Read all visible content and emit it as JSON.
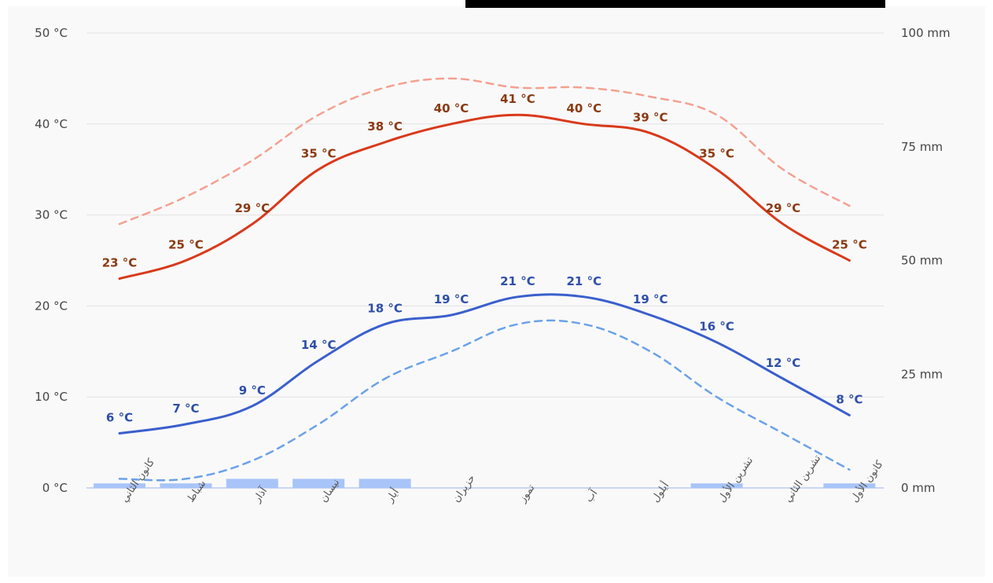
{
  "colors": {
    "avg_max_line": "#d9391a",
    "avg_min_line": "#3a5fcc",
    "record_max_dashed": "#f5a090",
    "record_min_dashed": "#6aa2e8",
    "precip_bar": "#a8c4f8",
    "max_label_text": "#8a3a12",
    "min_label_text": "#2e4fa8",
    "grid": "#e2e2e2",
    "background": "#f9f9f9"
  },
  "chart_data": {
    "type": "line",
    "categories": [
      "كانون الثاني",
      "شباط",
      "آذار",
      "نيسان",
      "أيار",
      "حزيران",
      "تموز",
      "آب",
      "أيلول",
      "تشرين الأول",
      "تشرين الثاني",
      "كانون الأول"
    ],
    "left_axis": {
      "ticks": [
        "0 °C",
        "10 °C",
        "20 °C",
        "30 °C",
        "40 °C",
        "50 °C"
      ],
      "ylim": [
        0,
        50
      ],
      "unit": "°C"
    },
    "right_axis": {
      "ticks": [
        "0 mm",
        "25 mm",
        "50 mm",
        "75 mm",
        "100 mm"
      ],
      "ylim": [
        0,
        100
      ],
      "unit": "mm"
    },
    "grid": true,
    "series": [
      {
        "key": "avg_max",
        "style": "solid",
        "values": [
          23,
          25,
          29,
          35,
          38,
          40,
          41,
          40,
          39,
          35,
          29,
          25
        ],
        "labels": [
          "23 °C",
          "25 °C",
          "29 °C",
          "35 °C",
          "38 °C",
          "40 °C",
          "41 °C",
          "40 °C",
          "39 °C",
          "35 °C",
          "29 °C",
          "25 °C"
        ]
      },
      {
        "key": "record_max",
        "style": "dashed",
        "values": [
          29,
          32,
          36,
          41,
          44,
          45,
          44,
          44,
          43,
          41,
          35,
          31
        ]
      },
      {
        "key": "avg_min",
        "style": "solid",
        "values": [
          6,
          7,
          9,
          14,
          18,
          19,
          21,
          21,
          19,
          16,
          12,
          8
        ],
        "labels": [
          "6 °C",
          "7 °C",
          "9 °C",
          "14 °C",
          "18 °C",
          "19 °C",
          "21 °C",
          "21 °C",
          "19 °C",
          "16 °C",
          "12 °C",
          "8 °C"
        ]
      },
      {
        "key": "record_min",
        "style": "dashed",
        "values": [
          1,
          1,
          3,
          7,
          12,
          15,
          18,
          18,
          15,
          10,
          6,
          2
        ]
      },
      {
        "key": "precipitation",
        "type": "bar",
        "axis": "right",
        "values": [
          1,
          1,
          2,
          2,
          2,
          0,
          0,
          0,
          0,
          1,
          0,
          1
        ]
      }
    ]
  }
}
